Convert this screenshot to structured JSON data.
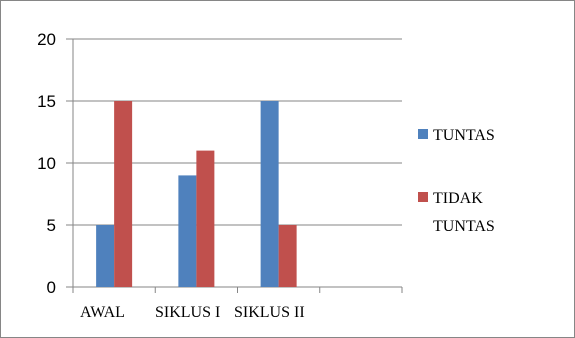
{
  "chart_data": {
    "type": "bar",
    "categories": [
      "AWAL",
      "SIKLUS I",
      "SIKLUS II"
    ],
    "series": [
      {
        "name": "TUNTAS",
        "values": [
          5,
          9,
          15
        ],
        "color": "#4F81BD"
      },
      {
        "name": "TIDAK TUNTAS",
        "values": [
          15,
          11,
          5
        ],
        "color": "#C0504D"
      }
    ],
    "yticks": [
      0,
      5,
      10,
      15,
      20
    ],
    "ylim": [
      0,
      20
    ],
    "grid": true,
    "legend": "right",
    "legend_lines": [
      [
        "TUNTAS"
      ],
      [
        "TIDAK",
        "TUNTAS"
      ]
    ]
  }
}
